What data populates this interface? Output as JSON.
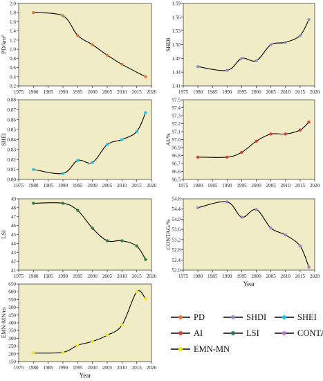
{
  "colors": {
    "panel_bg": "#efecc6",
    "curve": "#000000",
    "PD": "#e8783c",
    "AI": "#d8413a",
    "SHDI": "#8f94c8",
    "LSI": "#2e7d4a",
    "SHEI": "#22c4e6",
    "CONTAG": "#b07cc8",
    "EMN-MN": "#f2e81c"
  },
  "legend": [
    {
      "key": "PD",
      "label": "PD"
    },
    {
      "key": "SHDI",
      "label": "SHDI"
    },
    {
      "key": "SHEI",
      "label": "SHEI"
    },
    {
      "key": "AI",
      "label": "AI"
    },
    {
      "key": "LSI",
      "label": "LSI"
    },
    {
      "key": "CONTAG",
      "label": "CONTAG"
    },
    {
      "key": "EMN-MN",
      "label": "EMN-MN"
    }
  ],
  "chart_data": [
    {
      "type": "line",
      "series_key": "PD",
      "ylabel": "PD/km²",
      "xlabel": "",
      "x": [
        1980,
        1990,
        1995,
        2000,
        2005,
        2010,
        2018
      ],
      "values": [
        1.8,
        1.73,
        1.3,
        1.1,
        0.87,
        0.67,
        0.4
      ],
      "xlim": [
        1975,
        2020
      ],
      "ylim": [
        0.2,
        2.0
      ],
      "xticks": [
        1975,
        1980,
        1985,
        1990,
        1995,
        2000,
        2005,
        2010,
        2015,
        2020
      ],
      "yticks": [
        0.2,
        0.4,
        0.6,
        0.8,
        1.0,
        1.2,
        1.4,
        1.6,
        1.8,
        2.0
      ],
      "ytick_labels": [
        "0.2",
        "0.4",
        "0.6",
        "0.8",
        "1.0",
        "1.2",
        "1.4",
        "1.6",
        "1.8",
        "2.0"
      ]
    },
    {
      "type": "line",
      "series_key": "SHDI",
      "ylabel": "SHDI",
      "xlabel": "",
      "x": [
        1980,
        1990,
        1995,
        2000,
        2005,
        2010,
        2015,
        2018
      ],
      "values": [
        1.452,
        1.444,
        1.47,
        1.465,
        1.5,
        1.505,
        1.52,
        1.555
      ],
      "xlim": [
        1975,
        2020
      ],
      "ylim": [
        1.41,
        1.59
      ],
      "xticks": [
        1975,
        1980,
        1985,
        1990,
        1995,
        2000,
        2005,
        2010,
        2015,
        2020
      ],
      "yticks": [
        1.41,
        1.44,
        1.47,
        1.5,
        1.53,
        1.56,
        1.59
      ],
      "ytick_labels": [
        "1.41",
        "1.44",
        "1.47",
        "1.50",
        "1.53",
        "1.56",
        "1.59"
      ]
    },
    {
      "type": "line",
      "series_key": "SHEI",
      "ylabel": "SHEI",
      "xlabel": "",
      "x": [
        1980,
        1990,
        1995,
        2000,
        2005,
        2010,
        2015,
        2018
      ],
      "values": [
        0.81,
        0.806,
        0.819,
        0.817,
        0.835,
        0.84,
        0.848,
        0.867
      ],
      "xlim": [
        1975,
        2020
      ],
      "ylim": [
        0.8,
        0.88
      ],
      "xticks": [
        1975,
        1980,
        1985,
        1990,
        1995,
        2000,
        2005,
        2010,
        2015,
        2020
      ],
      "yticks": [
        0.8,
        0.81,
        0.82,
        0.83,
        0.84,
        0.85,
        0.86,
        0.87,
        0.88
      ],
      "ytick_labels": [
        "0.80",
        "0.81",
        "0.82",
        "0.83",
        "0.84",
        "0.85",
        "0.86",
        "0.87",
        "0.88"
      ]
    },
    {
      "type": "line",
      "series_key": "AI",
      "ylabel": "AI/%",
      "xlabel": "",
      "x": [
        1980,
        1990,
        1995,
        2000,
        2005,
        2010,
        2015,
        2018
      ],
      "values": [
        96.78,
        96.78,
        96.84,
        96.98,
        97.07,
        97.07,
        97.12,
        97.22
      ],
      "xlim": [
        1975,
        2020
      ],
      "ylim": [
        96.5,
        97.5
      ],
      "xticks": [
        1975,
        1980,
        1985,
        1990,
        1995,
        2000,
        2005,
        2010,
        2015,
        2020
      ],
      "yticks": [
        96.5,
        96.6,
        96.7,
        96.8,
        96.9,
        97.0,
        97.1,
        97.2,
        97.3,
        97.4,
        97.5
      ],
      "ytick_labels": [
        "96.5",
        "96.6",
        "96.7",
        "96.8",
        "96.9",
        "97.0",
        "97.1",
        "97.2",
        "97.3",
        "97.4",
        "97.5"
      ]
    },
    {
      "type": "line",
      "series_key": "LSI",
      "ylabel": "LSI",
      "xlabel": "",
      "x": [
        1980,
        1990,
        1995,
        2000,
        2005,
        2010,
        2015,
        2018
      ],
      "values": [
        48.5,
        48.5,
        47.7,
        45.7,
        44.3,
        44.3,
        43.7,
        42.2
      ],
      "xlim": [
        1975,
        2020
      ],
      "ylim": [
        41,
        49
      ],
      "xticks": [
        1975,
        1980,
        1985,
        1990,
        1995,
        2000,
        2005,
        2010,
        2015,
        2020
      ],
      "yticks": [
        41,
        42,
        43,
        44,
        45,
        46,
        47,
        48,
        49
      ],
      "ytick_labels": [
        "41",
        "42",
        "43",
        "44",
        "45",
        "46",
        "47",
        "48",
        "49"
      ]
    },
    {
      "type": "line",
      "series_key": "CONTAG",
      "ylabel": "CONTAG/%",
      "xlabel": "Year",
      "x": [
        1980,
        1990,
        1995,
        2000,
        2005,
        2010,
        2015,
        2018
      ],
      "values": [
        54.45,
        54.68,
        54.08,
        54.38,
        53.65,
        53.38,
        52.95,
        52.12
      ],
      "xlim": [
        1975,
        2020
      ],
      "ylim": [
        52.0,
        54.8
      ],
      "xticks": [
        1975,
        1980,
        1985,
        1990,
        1995,
        2000,
        2005,
        2010,
        2015,
        2020
      ],
      "yticks": [
        52.0,
        52.4,
        52.8,
        53.2,
        53.6,
        54.0,
        54.4,
        54.8
      ],
      "ytick_labels": [
        "52.0",
        "52.4",
        "52.8",
        "53.2",
        "53.6",
        "54.0",
        "54.4",
        "54.8"
      ]
    },
    {
      "type": "line",
      "series_key": "EMN-MN",
      "ylabel": "EMN-MN/m",
      "xlabel": "Year",
      "x": [
        1980,
        1990,
        1995,
        2000,
        2005,
        2010,
        2015,
        2018
      ],
      "values": [
        205,
        210,
        255,
        280,
        320,
        385,
        600,
        555
      ],
      "xlim": [
        1975,
        2020
      ],
      "ylim": [
        150,
        650
      ],
      "xticks": [
        1975,
        1980,
        1985,
        1990,
        1995,
        2000,
        2005,
        2010,
        2015,
        2020
      ],
      "yticks": [
        150,
        200,
        250,
        300,
        350,
        400,
        450,
        500,
        550,
        600,
        650
      ],
      "ytick_labels": [
        "150",
        "200",
        "250",
        "300",
        "350",
        "400",
        "450",
        "500",
        "550",
        "600",
        "650"
      ]
    }
  ]
}
